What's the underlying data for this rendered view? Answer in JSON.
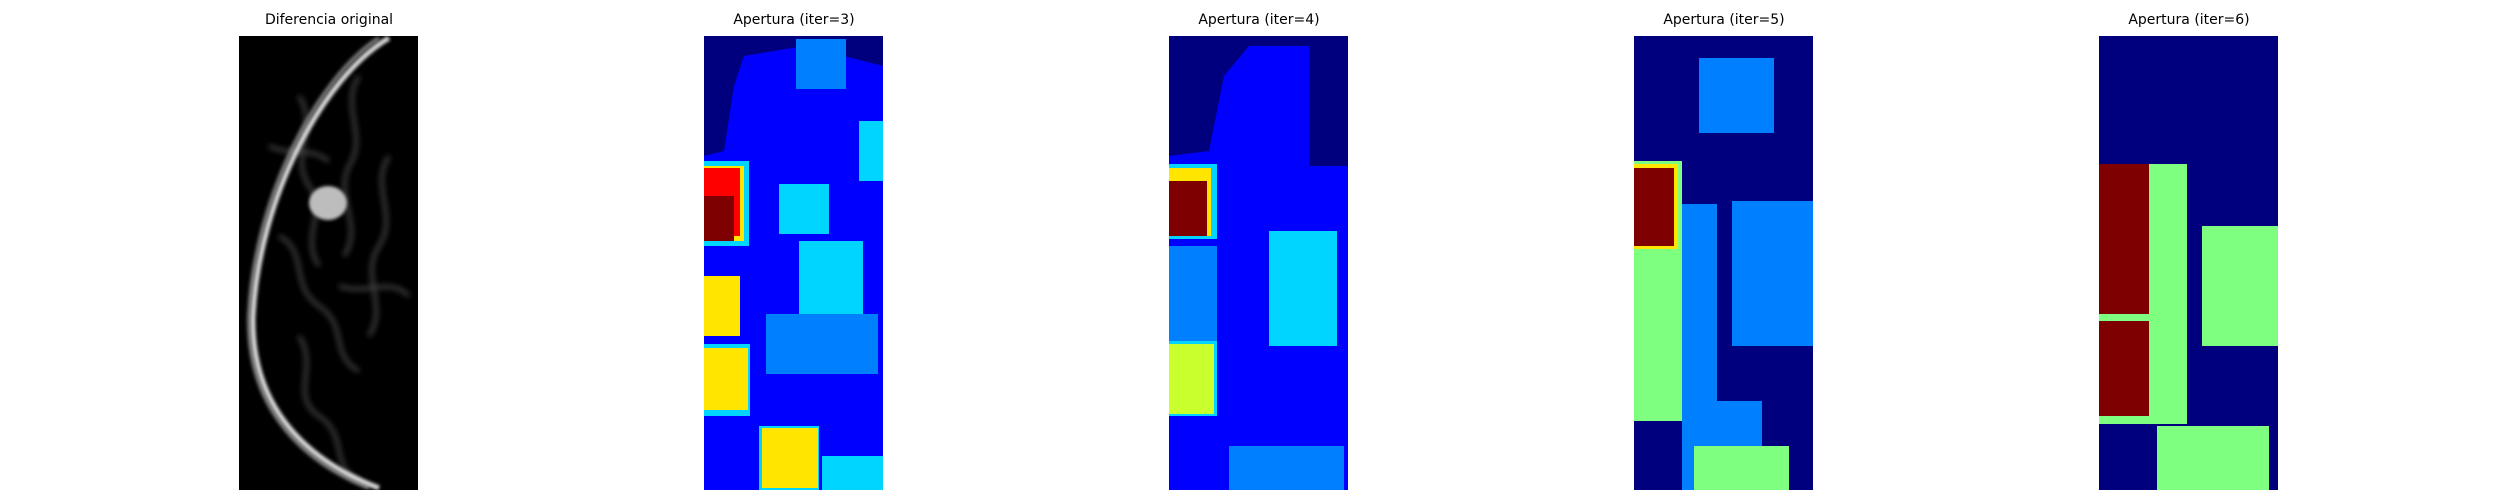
{
  "panels": [
    {
      "title": "Diferencia original",
      "colormap": "gray"
    },
    {
      "title": "Apertura (iter=3)",
      "colormap": "jet"
    },
    {
      "title": "Apertura (iter=4)",
      "colormap": "jet"
    },
    {
      "title": "Apertura (iter=5)",
      "colormap": "jet"
    },
    {
      "title": "Apertura (iter=6)",
      "colormap": "jet"
    }
  ],
  "colors": {
    "background": "#ffffff",
    "jet_dark_blue": "#00007f",
    "jet_blue": "#0000ff",
    "jet_mid_blue": "#0080ff",
    "jet_cyan": "#00d5ff",
    "jet_green": "#7fff7f",
    "jet_yellow": "#ffe500",
    "jet_dark_red": "#7f0000"
  }
}
